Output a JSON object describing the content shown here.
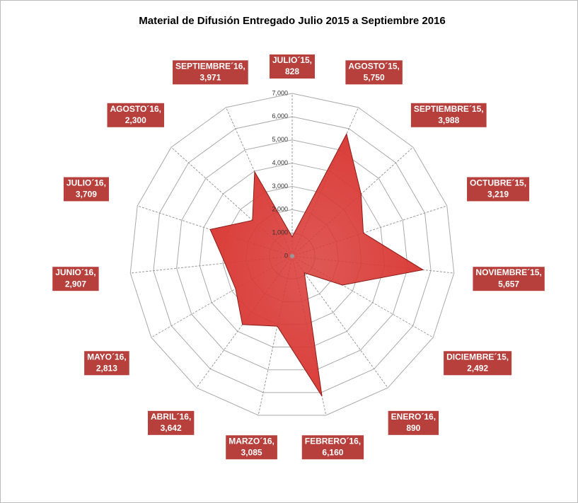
{
  "chart_data": {
    "type": "radar",
    "title": "Material de Difusión Entregado Julio 2015 a Septiembre 2016",
    "categories": [
      "JULIO´15",
      "AGOSTO´15",
      "SEPTIEMBRE´15",
      "OCTUBRE´15",
      "NOVIEMBRE´15",
      "DICIEMBRE´15",
      "ENERO´16",
      "FEBRERO´16",
      "MARZO´16",
      "ABRIL´16",
      "MAYO´16",
      "JUNIO´16",
      "JULIO´16",
      "AGOSTO´16",
      "SEPTIEMBRE´16"
    ],
    "values": [
      828,
      5750,
      3988,
      3219,
      5657,
      2492,
      890,
      6160,
      3085,
      3642,
      2813,
      2907,
      3709,
      2300,
      3971
    ],
    "value_labels": [
      "828",
      "5,750",
      "3,988",
      "3,219",
      "5,657",
      "2,492",
      "890",
      "6,160",
      "3,085",
      "3,642",
      "2,813",
      "2,907",
      "3,709",
      "2,300",
      "3,971"
    ],
    "label_separator": ",",
    "color": "#d93a36",
    "label_color": "#b8403c",
    "ylim": [
      0,
      7000
    ],
    "yticks": [
      0,
      {
        "value": 1000,
        "label": "1,000"
      },
      {
        "value": 2000,
        "label": "2,000"
      },
      {
        "value": 3000,
        "label": "3,000"
      },
      {
        "value": 4000,
        "label": "4,000"
      },
      {
        "value": 5000,
        "label": "5,000"
      },
      {
        "value": 6000,
        "label": "6,000"
      },
      {
        "value": 7000,
        "label": "7,000"
      }
    ],
    "grid": true
  }
}
